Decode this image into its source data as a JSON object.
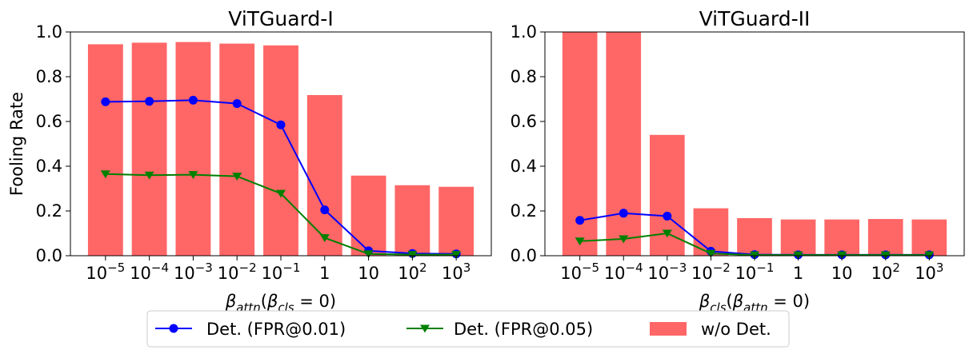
{
  "chart_data": [
    {
      "type": "bar",
      "title": "ViTGuard-I",
      "ylabel": "Fooling Rate",
      "xlabel": {
        "base": "β",
        "sub": "attn",
        "paren_base": "β",
        "paren_sub": "cls",
        "paren_rest": "= 0"
      },
      "categories": [
        "10^-5",
        "10^-4",
        "10^-3",
        "10^-2",
        "10^-1",
        "1",
        "10",
        "10^2",
        "10^3"
      ],
      "ylim": [
        0,
        1.0
      ],
      "yticks": [
        "0.0",
        "0.2",
        "0.4",
        "0.6",
        "0.8",
        "1.0"
      ],
      "series": [
        {
          "name": "w/o Det.",
          "kind": "bar",
          "color": "#ff6666",
          "values": [
            0.945,
            0.952,
            0.955,
            0.948,
            0.94,
            0.718,
            0.358,
            0.315,
            0.308
          ]
        },
        {
          "name": "Det. (FPR@0.01)",
          "kind": "line",
          "marker": "circle",
          "color": "#0000ff",
          "values": [
            0.688,
            0.69,
            0.695,
            0.68,
            0.585,
            0.205,
            0.022,
            0.01,
            0.008
          ]
        },
        {
          "name": "Det. (FPR@0.05)",
          "kind": "line",
          "marker": "triangle-down",
          "color": "#008000",
          "values": [
            0.365,
            0.36,
            0.362,
            0.355,
            0.278,
            0.08,
            0.008,
            0.005,
            0.005
          ]
        }
      ]
    },
    {
      "type": "bar",
      "title": "ViTGuard-II",
      "ylabel": "",
      "xlabel": {
        "base": "β",
        "sub": "cls",
        "paren_base": "β",
        "paren_sub": "attn",
        "paren_rest": "= 0"
      },
      "categories": [
        "10^-5",
        "10^-4",
        "10^-3",
        "10^-2",
        "10^-1",
        "1",
        "10",
        "10^2",
        "10^3"
      ],
      "ylim": [
        0,
        1.0
      ],
      "yticks": [
        "0.0",
        "0.2",
        "0.4",
        "0.6",
        "0.8",
        "1.0"
      ],
      "series": [
        {
          "name": "w/o Det.",
          "kind": "bar",
          "color": "#ff6666",
          "values": [
            1.0,
            1.0,
            0.54,
            0.212,
            0.168,
            0.162,
            0.162,
            0.164,
            0.162
          ]
        },
        {
          "name": "Det. (FPR@0.01)",
          "kind": "line",
          "marker": "circle",
          "color": "#0000ff",
          "values": [
            0.158,
            0.19,
            0.177,
            0.02,
            0.005,
            0.004,
            0.004,
            0.004,
            0.004
          ]
        },
        {
          "name": "Det. (FPR@0.05)",
          "kind": "line",
          "marker": "triangle-down",
          "color": "#008000",
          "values": [
            0.065,
            0.075,
            0.1,
            0.01,
            0.003,
            0.003,
            0.003,
            0.003,
            0.003
          ]
        }
      ]
    }
  ],
  "legend": {
    "entries": [
      {
        "label": "Det. (FPR@0.01)",
        "marker": "circle",
        "color": "#0000ff"
      },
      {
        "label": "Det. (FPR@0.05)",
        "marker": "triangle-down",
        "color": "#008000"
      },
      {
        "label": "w/o Det.",
        "marker": "patch",
        "color": "#ff6666"
      }
    ]
  }
}
